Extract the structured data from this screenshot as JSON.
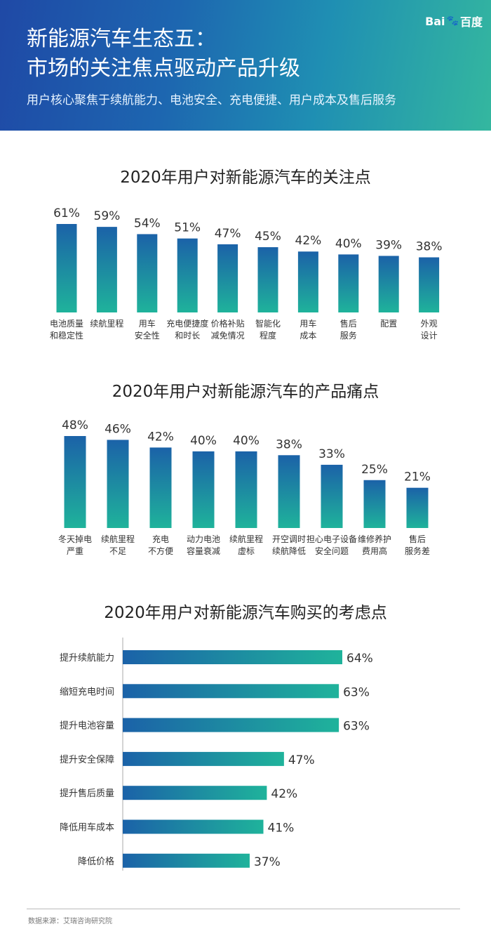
{
  "header": {
    "title_line1": "新能源汽车生态五：",
    "title_line2": "市场的关注焦点驱动产品升级",
    "subtitle": "用户核心聚焦于续航能力、电池安全、充电便捷、用户成本及售后服务",
    "logo_text_a": "Bai",
    "logo_text_b": "百度",
    "logo_icon": "baidu-paw-icon"
  },
  "colors": {
    "bar_top": "#1b62a8",
    "bar_bottom": "#1fb39b",
    "hbar_left": "#1b62a8",
    "hbar_right": "#1fb39b"
  },
  "chart_data": [
    {
      "type": "bar",
      "title": "2020年用户对新能源汽车的关注点",
      "categories": [
        [
          "电池质量",
          "和稳定性"
        ],
        [
          "续航里程"
        ],
        [
          "用车",
          "安全性"
        ],
        [
          "充电便捷度",
          "和时长"
        ],
        [
          "价格补贴",
          "减免情况"
        ],
        [
          "智能化",
          "程度"
        ],
        [
          "用车",
          "成本"
        ],
        [
          "售后",
          "服务"
        ],
        [
          "配置"
        ],
        [
          "外观",
          "设计"
        ]
      ],
      "values": [
        61,
        59,
        54,
        51,
        47,
        45,
        42,
        40,
        39,
        38
      ],
      "value_labels": [
        "61%",
        "59%",
        "54%",
        "51%",
        "47%",
        "45%",
        "42%",
        "40%",
        "39%",
        "38%"
      ],
      "ylim": [
        0,
        61
      ]
    },
    {
      "type": "bar",
      "title": "2020年用户对新能源汽车的产品痛点",
      "categories": [
        [
          "冬天掉电",
          "严重"
        ],
        [
          "续航里程",
          "不足"
        ],
        [
          "充电",
          "不方便"
        ],
        [
          "动力电池",
          "容量衰减"
        ],
        [
          "续航里程",
          "虚标"
        ],
        [
          "开空调时",
          "续航降低"
        ],
        [
          "担心电子设备",
          "安全问题"
        ],
        [
          "维修养护",
          "费用高"
        ],
        [
          "售后",
          "服务差"
        ]
      ],
      "values": [
        48,
        46,
        42,
        40,
        40,
        38,
        33,
        25,
        21
      ],
      "value_labels": [
        "48%",
        "46%",
        "42%",
        "40%",
        "40%",
        "38%",
        "33%",
        "25%",
        "21%"
      ],
      "ylim": [
        0,
        48
      ]
    },
    {
      "type": "bar",
      "orientation": "horizontal",
      "title": "2020年用户对新能源汽车购买的考虑点",
      "categories": [
        "提升续航能力",
        "缩短充电时间",
        "提升电池容量",
        "提升安全保障",
        "提升售后质量",
        "降低用车成本",
        "降低价格"
      ],
      "values": [
        64,
        63,
        63,
        47,
        42,
        41,
        37
      ],
      "value_labels": [
        "64%",
        "63%",
        "63%",
        "47%",
        "42%",
        "41%",
        "37%"
      ],
      "xlim": [
        0,
        64
      ]
    }
  ],
  "footer": {
    "source": "数据来源：艾瑞咨询研究院"
  }
}
